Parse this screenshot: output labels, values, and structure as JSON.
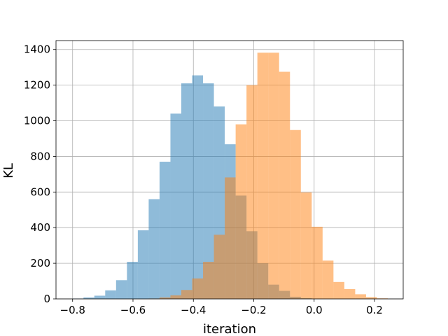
{
  "chart_data": {
    "type": "bar",
    "title": "",
    "xlabel": "iteration",
    "ylabel": "KL",
    "xlim": [
      -0.855,
      0.295
    ],
    "ylim": [
      0,
      1450
    ],
    "x_ticks": [
      -0.8,
      -0.6,
      -0.4,
      -0.2,
      0.0,
      0.2
    ],
    "x_tick_labels": [
      "−0.8",
      "−0.6",
      "−0.4",
      "−0.2",
      "0.0",
      "0.2"
    ],
    "y_ticks": [
      0,
      200,
      400,
      600,
      800,
      1000,
      1200,
      1400
    ],
    "y_tick_labels": [
      "0",
      "200",
      "400",
      "600",
      "800",
      "1000",
      "1200",
      "1400"
    ],
    "grid": true,
    "legend": "none",
    "series": [
      {
        "color": "#1f77b4",
        "alpha": 0.5,
        "bins": [
          [
            -0.8,
            -0.764,
            2
          ],
          [
            -0.764,
            -0.728,
            8
          ],
          [
            -0.728,
            -0.692,
            18
          ],
          [
            -0.692,
            -0.656,
            48
          ],
          [
            -0.656,
            -0.62,
            105
          ],
          [
            -0.62,
            -0.584,
            208
          ],
          [
            -0.584,
            -0.548,
            385
          ],
          [
            -0.548,
            -0.512,
            560
          ],
          [
            -0.512,
            -0.476,
            770
          ],
          [
            -0.476,
            -0.44,
            1040
          ],
          [
            -0.44,
            -0.404,
            1210
          ],
          [
            -0.404,
            -0.368,
            1255
          ],
          [
            -0.368,
            -0.332,
            1210
          ],
          [
            -0.332,
            -0.296,
            1080
          ],
          [
            -0.296,
            -0.26,
            868
          ],
          [
            -0.26,
            -0.224,
            580
          ],
          [
            -0.224,
            -0.188,
            380
          ],
          [
            -0.188,
            -0.152,
            200
          ],
          [
            -0.152,
            -0.116,
            80
          ],
          [
            -0.116,
            -0.08,
            45
          ],
          [
            -0.08,
            -0.044,
            12
          ],
          [
            -0.044,
            -0.008,
            4
          ]
        ]
      },
      {
        "color": "#ff7f0e",
        "alpha": 0.5,
        "bins": [
          [
            -0.548,
            -0.512,
            2
          ],
          [
            -0.512,
            -0.476,
            8
          ],
          [
            -0.476,
            -0.44,
            20
          ],
          [
            -0.44,
            -0.404,
            50
          ],
          [
            -0.404,
            -0.368,
            115
          ],
          [
            -0.368,
            -0.332,
            208
          ],
          [
            -0.332,
            -0.296,
            360
          ],
          [
            -0.296,
            -0.26,
            682
          ],
          [
            -0.26,
            -0.224,
            980
          ],
          [
            -0.224,
            -0.188,
            1200
          ],
          [
            -0.188,
            -0.152,
            1382
          ],
          [
            -0.152,
            -0.116,
            1382
          ],
          [
            -0.116,
            -0.08,
            1275
          ],
          [
            -0.08,
            -0.044,
            948
          ],
          [
            -0.044,
            -0.008,
            598
          ],
          [
            -0.008,
            0.028,
            405
          ],
          [
            0.028,
            0.064,
            215
          ],
          [
            0.064,
            0.1,
            95
          ],
          [
            0.1,
            0.136,
            55
          ],
          [
            0.136,
            0.172,
            26
          ],
          [
            0.172,
            0.208,
            10
          ],
          [
            0.208,
            0.244,
            3
          ]
        ]
      }
    ]
  }
}
